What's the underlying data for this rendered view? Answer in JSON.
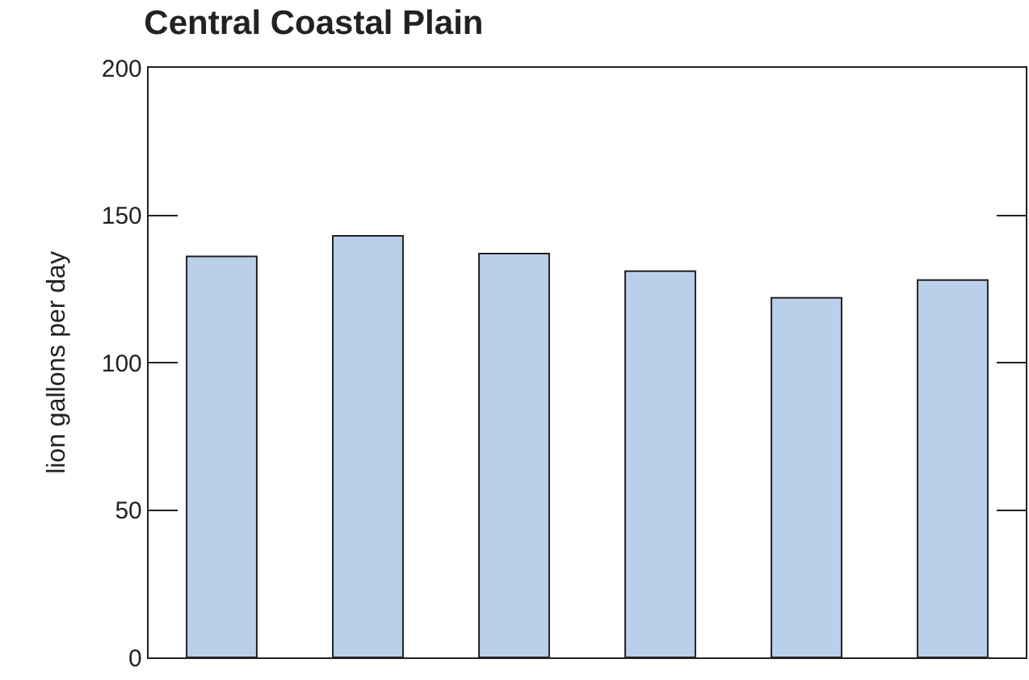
{
  "chart_data": {
    "type": "bar",
    "title": "Central Coastal Plain",
    "ylabel": "lion gallons per day",
    "categories": [
      null,
      null,
      null,
      null,
      null,
      null
    ],
    "values": [
      136,
      143,
      137,
      131,
      122,
      128
    ],
    "color": "#bacfe9",
    "ylim": [
      0,
      200
    ],
    "yticks": [
      0,
      50,
      100,
      150,
      200
    ],
    "grid": false
  }
}
